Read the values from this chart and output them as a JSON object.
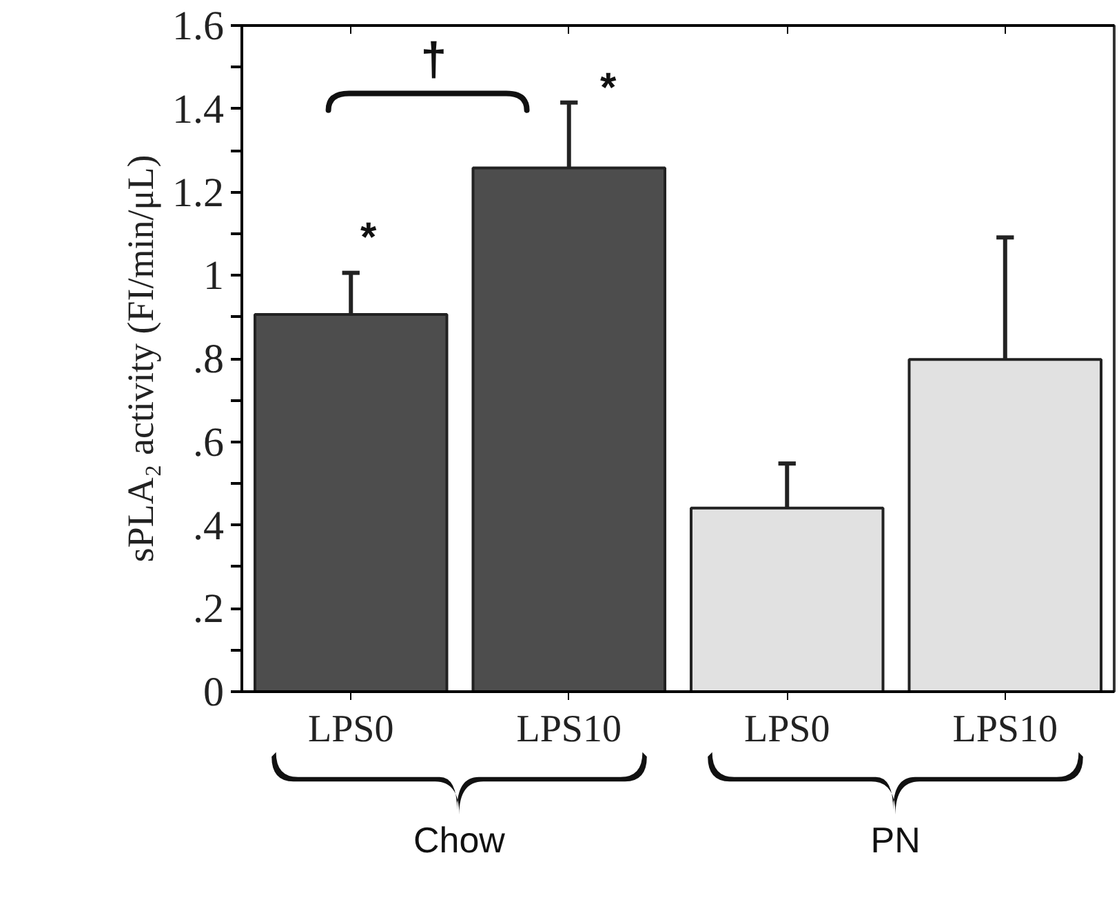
{
  "chart_data": {
    "type": "bar",
    "ylabel": "sPLA₂ activity (FI/min/μL)",
    "categories": [
      "LPS0",
      "LPS10",
      "LPS0",
      "LPS10"
    ],
    "values": [
      0.906,
      1.258,
      0.441,
      0.798
    ],
    "colors": [
      "#4d4d4d",
      "#4d4d4d",
      "#e1e1e1",
      "#e1e1e1"
    ],
    "errors": [
      [
        0.906,
        1.006
      ],
      [
        1.258,
        1.415
      ],
      [
        0.441,
        0.548
      ],
      [
        0.798,
        1.091
      ]
    ],
    "ylim": [
      0,
      1.6
    ],
    "yticks": [
      0,
      {
        "value": 0.1,
        "label": null
      },
      {
        "value": 0.2,
        "label": ".2"
      },
      {
        "value": 0.3,
        "label": null
      },
      {
        "value": 0.4,
        "label": ".4"
      },
      {
        "value": 0.5,
        "label": null
      },
      {
        "value": 0.6,
        "label": ".6"
      },
      {
        "value": 0.7,
        "label": null
      },
      {
        "value": 0.8,
        "label": ".8"
      },
      {
        "value": 0.9,
        "label": null
      },
      1,
      {
        "value": 1.1,
        "label": null
      },
      1.2,
      {
        "value": 1.3,
        "label": null
      },
      1.4,
      {
        "value": 1.5,
        "label": null
      },
      1.6
    ],
    "grid": false,
    "annotations": [
      "†",
      "*",
      "*",
      "Chow",
      "PN"
    ]
  }
}
